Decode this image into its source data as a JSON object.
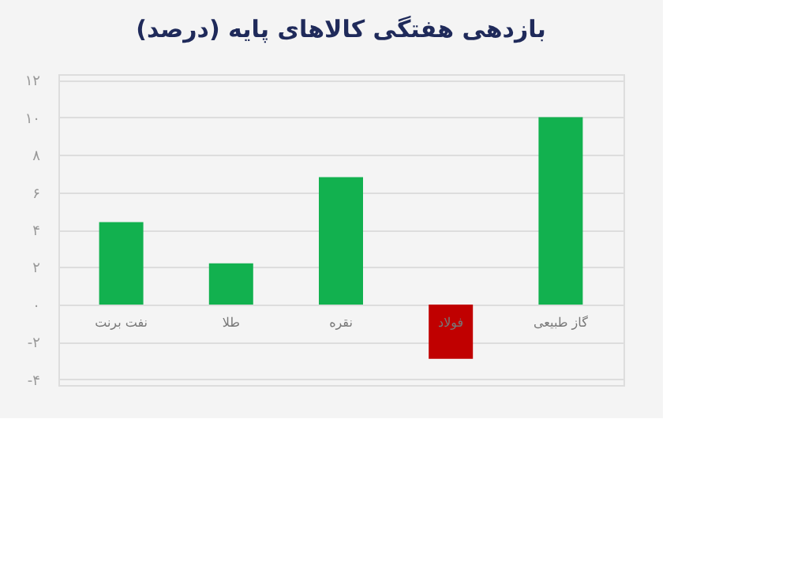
{
  "chart_data": {
    "type": "bar",
    "title": "بازدهی هفتگی کالاهای پایه (درصد)",
    "categories": [
      "نفت برنت",
      "طلا",
      "نقره",
      "فولاد",
      "گاز طبیعی"
    ],
    "values": [
      4.4,
      2.2,
      6.8,
      -2.9,
      10.0
    ],
    "colors": [
      "#12b14f",
      "#12b14f",
      "#12b14f",
      "#c00000",
      "#12b14f"
    ],
    "ylim": [
      -4.3,
      12.3
    ],
    "yticks": [
      {
        "value": 12,
        "label": "۱۲"
      },
      {
        "value": 10,
        "label": "۱۰"
      },
      {
        "value": 8,
        "label": "۸"
      },
      {
        "value": 6,
        "label": "۶"
      },
      {
        "value": 4,
        "label": "۴"
      },
      {
        "value": 2,
        "label": "۲"
      },
      {
        "value": 0,
        "label": "۰"
      },
      {
        "value": -2,
        "label": "-۲"
      },
      {
        "value": -4,
        "label": "-۴"
      }
    ],
    "grid": "y"
  }
}
